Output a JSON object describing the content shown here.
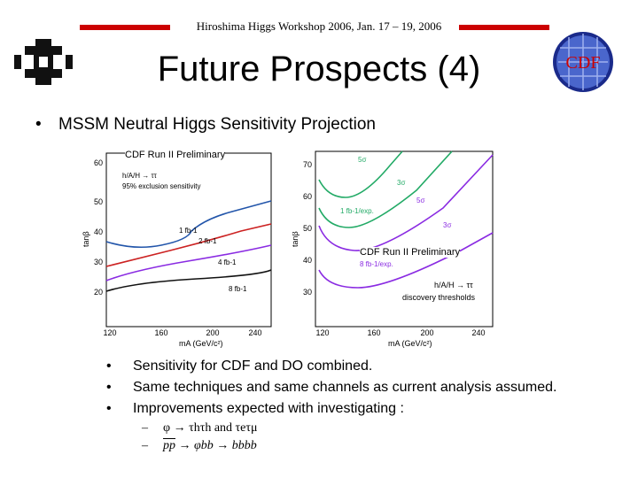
{
  "header": {
    "workshop": "Hiroshima Higgs Workshop 2006, Jan. 17 – 19, 2006",
    "title": "Future Prospects (4)"
  },
  "logos": {
    "cdf_text": "CDF"
  },
  "main_bullet": "MSSM Neutral Higgs Sensitivity Projection",
  "plot_left": {
    "prelim": "CDF Run II Preliminary",
    "legend1": "h/A/H → ττ",
    "legend2": "95% exclusion sensitivity",
    "ylabel": "tanβ",
    "xlabel": "mA (GeV/c²)",
    "yticks": [
      "20",
      "30",
      "40",
      "50",
      "60"
    ],
    "xticks": [
      "120",
      "160",
      "200",
      "240"
    ],
    "curves": [
      "1 fb-1",
      "2 fb-1",
      "4 fb-1",
      "8 fb-1"
    ]
  },
  "plot_right": {
    "prelim": "CDF Run II Preliminary",
    "ylabel": "tanβ",
    "xlabel": "mA (GeV/c²)",
    "yticks": [
      "30",
      "40",
      "50",
      "60",
      "70"
    ],
    "xticks": [
      "120",
      "160",
      "200",
      "240"
    ],
    "labels": [
      "5σ",
      "3σ",
      "1 fb-1/exp.",
      "5σ",
      "3σ",
      "8 fb-1/exp."
    ],
    "legend1": "h/A/H → ττ",
    "legend2": "discovery thresholds"
  },
  "sub_bullets": [
    "Sensitivity for CDF and DO combined.",
    "Same techniques and same channels as current analysis assumed.",
    "Improvements expected with investigating :"
  ],
  "dash_items": {
    "item1": "φ → τhτh and τeτμ",
    "item2_a": "pp",
    "item2_b": " → φbb → bbbb"
  },
  "colors": {
    "accent": "#cc0000",
    "green": "#22aa66",
    "purple": "#8a2be2",
    "blue": "#2255aa",
    "red": "#cc2222"
  }
}
